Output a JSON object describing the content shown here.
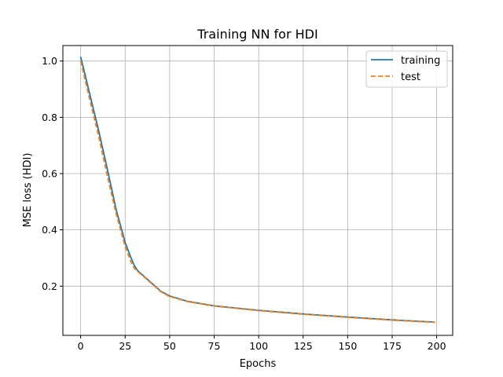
{
  "chart_data": {
    "type": "line",
    "title": "Training NN for HDI",
    "xlabel": "Epochs",
    "ylabel": "MSE loss (HDI)",
    "xlim": [
      -10,
      209
    ],
    "ylim": [
      0.025,
      1.055
    ],
    "xticks": [
      0,
      25,
      50,
      75,
      100,
      125,
      150,
      175,
      200
    ],
    "yticks": [
      0.2,
      0.4,
      0.6,
      0.8,
      1.0
    ],
    "ytick_labels": [
      "0.2",
      "0.4",
      "0.6",
      "0.8",
      "1.0"
    ],
    "grid": true,
    "legend_position": "top-right",
    "series": [
      {
        "name": "training",
        "color": "#1f77b4",
        "style": "solid",
        "x": [
          0,
          5,
          10,
          15,
          20,
          25,
          28,
          30,
          32,
          35,
          40,
          45,
          50,
          60,
          75,
          100,
          125,
          150,
          175,
          199
        ],
        "y": [
          1.015,
          0.885,
          0.755,
          0.615,
          0.47,
          0.355,
          0.305,
          0.275,
          0.255,
          0.238,
          0.21,
          0.182,
          0.165,
          0.146,
          0.13,
          0.114,
          0.101,
          0.09,
          0.08,
          0.072
        ]
      },
      {
        "name": "test",
        "color": "#ff7f0e",
        "style": "dashed",
        "x": [
          0,
          5,
          10,
          15,
          20,
          25,
          28,
          30,
          32,
          35,
          40,
          45,
          50,
          60,
          75,
          100,
          125,
          150,
          175,
          199
        ],
        "y": [
          1.0,
          0.865,
          0.735,
          0.59,
          0.455,
          0.34,
          0.29,
          0.265,
          0.252,
          0.236,
          0.208,
          0.18,
          0.163,
          0.145,
          0.129,
          0.113,
          0.1,
          0.089,
          0.079,
          0.071
        ]
      }
    ]
  }
}
